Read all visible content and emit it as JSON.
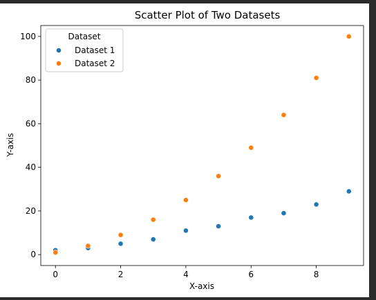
{
  "colors": {
    "page_background": "#2b2b2b",
    "figure_background": "#ffffff",
    "dataset_1": "#1f77b4",
    "dataset_2": "#ff7f0e"
  },
  "chart_data": {
    "type": "scatter",
    "title": "Scatter Plot of Two Datasets",
    "xlabel": "X-axis",
    "ylabel": "Y-axis",
    "xlim": [
      -0.45,
      9.45
    ],
    "ylim": [
      -5,
      105
    ],
    "xticks": [
      0,
      2,
      4,
      6,
      8
    ],
    "yticks": [
      0,
      20,
      40,
      60,
      80,
      100
    ],
    "grid": false,
    "legend": {
      "title": "Dataset",
      "placement": "top-left",
      "entries": [
        "Dataset 1",
        "Dataset 2"
      ]
    },
    "series": [
      {
        "name": "Dataset 1",
        "color": "#1f77b4",
        "x": [
          0,
          1,
          2,
          3,
          4,
          5,
          6,
          7,
          8,
          9
        ],
        "y": [
          2,
          3,
          5,
          7,
          11,
          13,
          17,
          19,
          23,
          29
        ]
      },
      {
        "name": "Dataset 2",
        "color": "#ff7f0e",
        "x": [
          0,
          1,
          2,
          3,
          4,
          5,
          6,
          7,
          8,
          9
        ],
        "y": [
          1,
          4,
          9,
          16,
          25,
          36,
          49,
          64,
          81,
          100
        ]
      }
    ]
  }
}
